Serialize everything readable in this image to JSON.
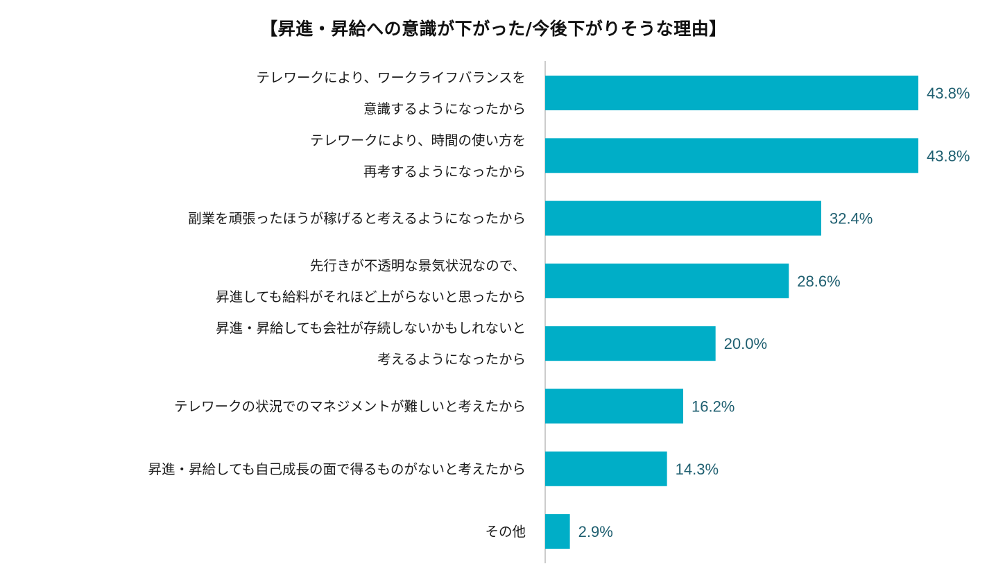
{
  "chart_data": {
    "type": "bar",
    "orientation": "horizontal",
    "title": "【昇進・昇給への意識が下がった/今後下がりそうな理由】",
    "categories": [
      [
        "テレワークにより、ワークライフバランスを",
        "意識するようになったから"
      ],
      [
        "テレワークにより、時間の使い方を",
        "再考するようになったから"
      ],
      [
        "副業を頑張ったほうが稼げると考えるようになったから"
      ],
      [
        "先行きが不透明な景気状況なので、",
        "昇進しても給料がそれほど上がらないと思ったから"
      ],
      [
        "昇進・昇給しても会社が存続しないかもしれないと",
        "考えるようになったから"
      ],
      [
        "テレワークの状況でのマネジメントが難しいと考えたから"
      ],
      [
        "昇進・昇給しても自己成長の面で得るものがないと考えたから"
      ],
      [
        "その他"
      ]
    ],
    "values": [
      43.8,
      43.8,
      32.4,
      28.6,
      20.0,
      16.2,
      14.3,
      2.9
    ],
    "value_labels": [
      "43.8%",
      "43.8%",
      "32.4%",
      "28.6%",
      "20.0%",
      "16.2%",
      "14.3%",
      "2.9%"
    ],
    "xlim": [
      0,
      50
    ],
    "bar_color": "#00aec7",
    "value_label_color": "#1f5f70",
    "axis_color": "#bbbbbb",
    "grid": false,
    "legend": false
  }
}
